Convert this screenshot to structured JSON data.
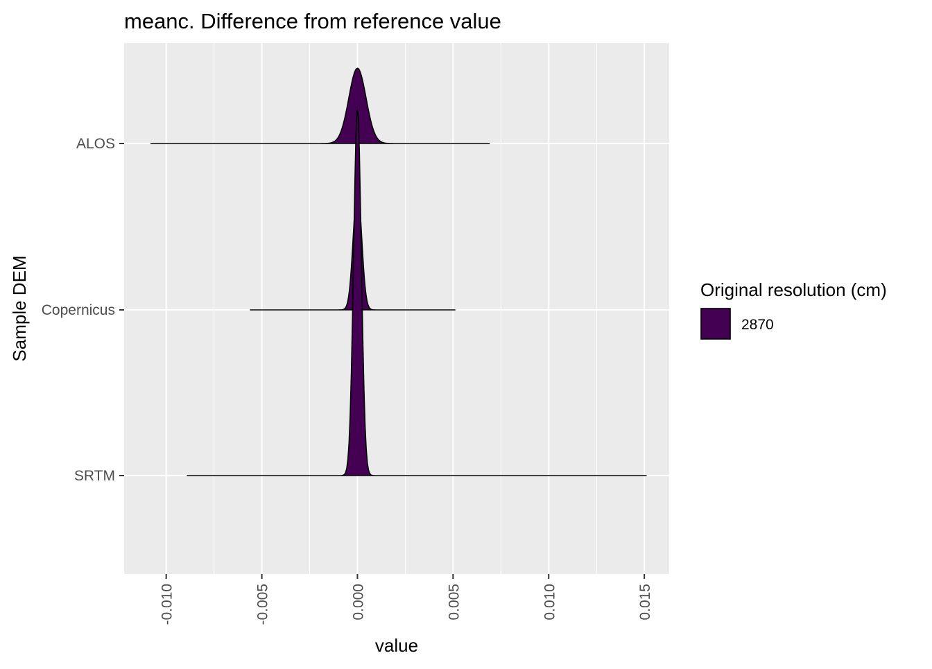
{
  "chart_data": {
    "type": "ridgeline",
    "title": "meanc. Difference from reference value",
    "xlabel": "value",
    "ylabel": "Sample DEM",
    "xlim": [
      -0.0122,
      0.0163
    ],
    "x_ticks": [
      -0.01,
      -0.005,
      0.0,
      0.005,
      0.01,
      0.015
    ],
    "x_tick_labels": [
      "-0.010",
      "-0.005",
      "0.000",
      "0.005",
      "0.010",
      "0.015"
    ],
    "categories": [
      "ALOS",
      "Copernicus",
      "SRTM"
    ],
    "grid": true,
    "legend": {
      "title": "Original resolution (cm)",
      "position": "right",
      "entries": [
        {
          "label": "2870",
          "color": "#440154"
        }
      ]
    },
    "series": [
      {
        "category": "ALOS",
        "min": -0.0108,
        "max": 0.0069,
        "mode": 0.0,
        "peak_height": 0.205,
        "spread": 0.00045
      },
      {
        "category": "Copernicus",
        "min": -0.0056,
        "max": 0.0051,
        "mode": 0.0,
        "peak_height": 0.33,
        "spread": 0.00022
      },
      {
        "category": "SRTM",
        "min": -0.0089,
        "max": 0.0151,
        "mode": 0.0,
        "peak_height": 1.0,
        "spread": 0.0002
      }
    ]
  }
}
